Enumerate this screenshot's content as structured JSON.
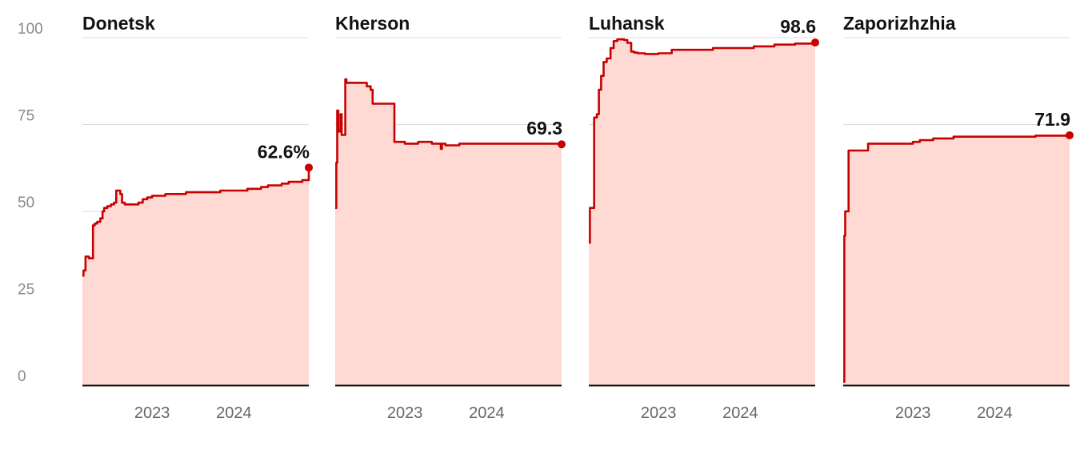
{
  "colors": {
    "line": "#c70000",
    "area": "#ffd9d3",
    "grid": "#dcdcdc",
    "baseline": "#121212"
  },
  "chart_data": {
    "type": "area",
    "ylim": [
      0,
      100
    ],
    "yticks": [
      "0",
      "25",
      "50",
      "75",
      "100"
    ],
    "xticks": [
      "2023",
      "2024"
    ],
    "xlim": [
      "2022-02-24",
      "2024-11-30"
    ],
    "grid": true,
    "panels": [
      {
        "title": "Donetsk",
        "end_label": "62.6%",
        "x": [
          "2022-02-24",
          "2022-03-01",
          "2022-03-10",
          "2022-03-12",
          "2022-03-25",
          "2022-04-05",
          "2022-04-12",
          "2022-04-20",
          "2022-05-01",
          "2022-05-15",
          "2022-05-25",
          "2022-06-01",
          "2022-06-15",
          "2022-07-01",
          "2022-07-15",
          "2022-07-25",
          "2022-08-05",
          "2022-08-12",
          "2022-08-20",
          "2022-09-01",
          "2022-10-01",
          "2022-11-01",
          "2022-11-20",
          "2022-12-10",
          "2023-01-01",
          "2023-03-01",
          "2023-05-01",
          "2023-06-01",
          "2023-07-01",
          "2023-09-01",
          "2023-11-01",
          "2024-01-01",
          "2024-03-01",
          "2024-05-01",
          "2024-06-01",
          "2024-08-01",
          "2024-09-01",
          "2024-11-01",
          "2024-11-30"
        ],
        "y": [
          31.5,
          33,
          37,
          37,
          36.5,
          36.5,
          46,
          46.5,
          47,
          48,
          50,
          51,
          51.5,
          52,
          52.5,
          56,
          56,
          55,
          52.5,
          52,
          52,
          52.5,
          53.5,
          54,
          54.5,
          55,
          55,
          55.5,
          55.5,
          55.5,
          56,
          56,
          56.5,
          57,
          57.5,
          58,
          58.5,
          59,
          62.6
        ]
      },
      {
        "title": "Kherson",
        "end_label": "69.3",
        "x": [
          "2022-02-24",
          "2022-03-01",
          "2022-03-05",
          "2022-03-10",
          "2022-03-20",
          "2022-03-25",
          "2022-04-05",
          "2022-04-10",
          "2022-04-15",
          "2022-05-01",
          "2022-06-01",
          "2022-07-01",
          "2022-07-15",
          "2022-08-01",
          "2022-08-10",
          "2022-09-01",
          "2022-10-01",
          "2022-11-10",
          "2022-11-15",
          "2023-01-01",
          "2023-03-01",
          "2023-05-01",
          "2023-06-10",
          "2023-06-15",
          "2023-07-01",
          "2023-09-01",
          "2024-01-01",
          "2024-05-01",
          "2024-09-01",
          "2024-11-30"
        ],
        "y": [
          51,
          64,
          79,
          73,
          78,
          72,
          72,
          88,
          87,
          87,
          87,
          87,
          86,
          85,
          81,
          81,
          81,
          81,
          70,
          69.5,
          70,
          69.5,
          68,
          69.5,
          69,
          69.5,
          69.5,
          69.5,
          69.5,
          69.3
        ]
      },
      {
        "title": "Luhansk",
        "end_label": "98.6",
        "x": [
          "2022-02-24",
          "2022-03-01",
          "2022-03-15",
          "2022-03-20",
          "2022-04-01",
          "2022-04-10",
          "2022-04-20",
          "2022-05-01",
          "2022-05-15",
          "2022-06-01",
          "2022-06-15",
          "2022-07-01",
          "2022-07-15",
          "2022-08-01",
          "2022-08-15",
          "2022-09-01",
          "2022-09-15",
          "2022-10-01",
          "2022-11-01",
          "2023-01-01",
          "2023-03-01",
          "2023-05-01",
          "2023-09-01",
          "2024-01-01",
          "2024-03-01",
          "2024-06-01",
          "2024-09-01",
          "2024-11-30"
        ],
        "y": [
          41,
          51,
          51,
          77,
          78,
          85,
          89,
          93,
          94,
          97,
          99,
          99.5,
          99.5,
          99.3,
          98.5,
          96,
          95.7,
          95.5,
          95.3,
          95.5,
          96.5,
          96.5,
          97,
          97,
          97.5,
          98,
          98.3,
          98.6
        ]
      },
      {
        "title": "Zaporizhzhia",
        "end_label": "71.9",
        "x": [
          "2022-02-24",
          "2022-03-01",
          "2022-03-05",
          "2022-03-15",
          "2022-03-20",
          "2022-05-01",
          "2022-06-01",
          "2022-06-15",
          "2022-09-01",
          "2022-09-15",
          "2023-01-01",
          "2023-02-01",
          "2023-04-01",
          "2023-05-01",
          "2023-07-01",
          "2023-09-01",
          "2024-01-01",
          "2024-04-01",
          "2024-07-01",
          "2024-11-30"
        ],
        "y": [
          1,
          43,
          50,
          50,
          67.5,
          67.5,
          67.5,
          69.5,
          69.5,
          69.5,
          70,
          70.5,
          71,
          71,
          71.5,
          71.5,
          71.5,
          71.5,
          71.8,
          71.9
        ]
      }
    ]
  }
}
